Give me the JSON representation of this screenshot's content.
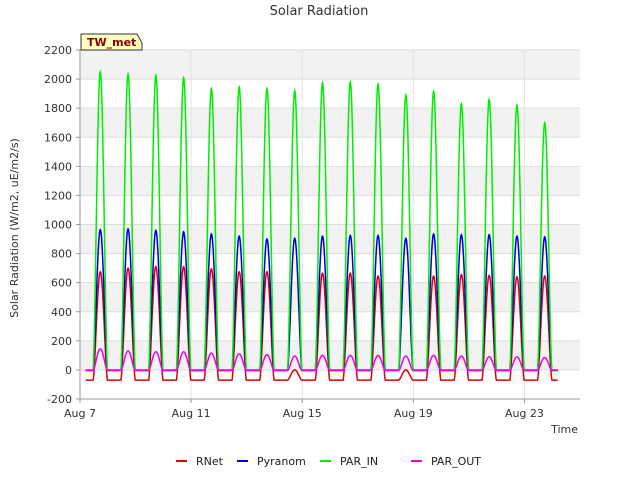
{
  "chart_data": {
    "type": "line",
    "title": "Solar Radiation",
    "xlabel": "Time",
    "ylabel": "Solar Radiation (W/m2, uE/m2/s)",
    "badge": "TW_met",
    "ylim": [
      -200,
      2200
    ],
    "yticks": [
      -200,
      0,
      200,
      400,
      600,
      800,
      1000,
      1200,
      1400,
      1600,
      1800,
      2000,
      2200
    ],
    "xlim_days": [
      7,
      25
    ],
    "xticks": [
      {
        "day": 7,
        "label": "Aug 7"
      },
      {
        "day": 11,
        "label": "Aug 11"
      },
      {
        "day": 15,
        "label": "Aug 15"
      },
      {
        "day": 19,
        "label": "Aug 19"
      },
      {
        "day": 23,
        "label": "Aug 23"
      }
    ],
    "grid": true,
    "legend_position": "bottom",
    "series": [
      {
        "name": "RNet",
        "color": "#dd0000",
        "night": -70,
        "peaks": [
          675,
          700,
          710,
          710,
          695,
          675,
          675,
          0,
          665,
          665,
          645,
          0,
          645,
          655,
          650,
          640,
          645
        ]
      },
      {
        "name": "Pyranom",
        "color": "#0000dd",
        "night": 0,
        "peaks": [
          965,
          970,
          960,
          950,
          935,
          920,
          900,
          905,
          920,
          925,
          925,
          905,
          935,
          930,
          930,
          920,
          915
        ]
      },
      {
        "name": "PAR_IN",
        "color": "#00ee00",
        "night": 0,
        "peaks": [
          2050,
          2035,
          2025,
          2010,
          1935,
          1945,
          1935,
          1920,
          1975,
          1980,
          1965,
          1890,
          1915,
          1830,
          1860,
          1820,
          1700
        ]
      },
      {
        "name": "PAR_OUT",
        "color": "#ee00ee",
        "night": -5,
        "peaks": [
          145,
          130,
          125,
          125,
          115,
          110,
          105,
          95,
          100,
          100,
          100,
          95,
          100,
          95,
          90,
          90,
          85
        ]
      }
    ]
  }
}
